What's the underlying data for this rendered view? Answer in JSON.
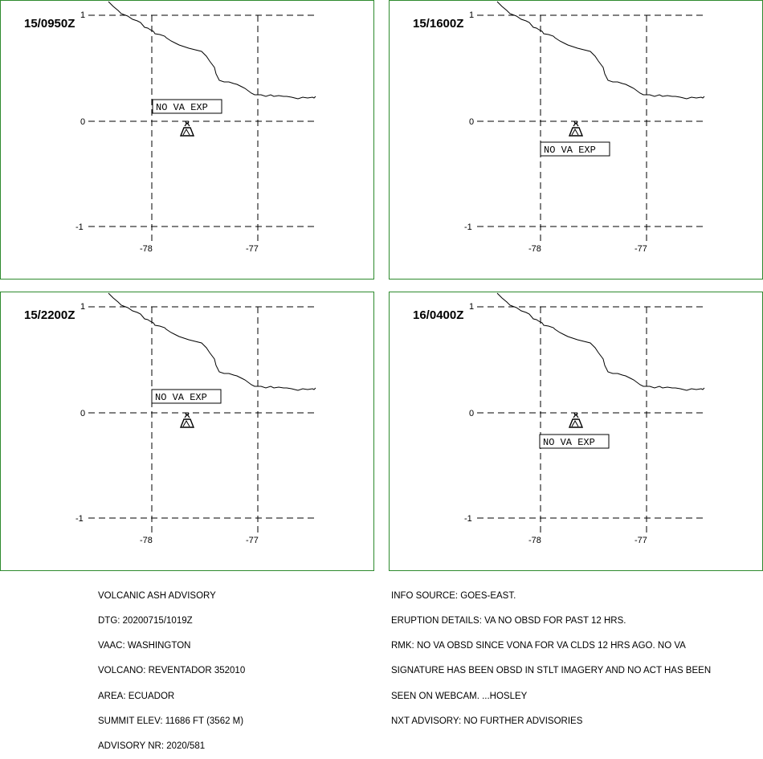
{
  "panels": [
    {
      "time": "15/0950Z",
      "status": "NO VA EXP"
    },
    {
      "time": "15/1600Z",
      "status": "NO VA EXP"
    },
    {
      "time": "15/2200Z",
      "status": "NO VA EXP"
    },
    {
      "time": "16/0400Z",
      "status": "NO VA EXP"
    }
  ],
  "axes": {
    "lat_labels": [
      "1",
      "0",
      "-1"
    ],
    "lon_labels": [
      "-78",
      "-77"
    ]
  },
  "volcano_icon": "volcano-icon",
  "colors": {
    "panel_border": "#2e8b2e",
    "lines": "#000000"
  },
  "advisory_left": [
    "VOLCANIC ASH ADVISORY",
    "DTG: 20200715/1019Z",
    "VAAC: WASHINGTON",
    "VOLCANO: REVENTADOR 352010",
    "AREA: ECUADOR",
    "SUMMIT ELEV: 11686 FT (3562 M)",
    "ADVISORY NR: 2020/581"
  ],
  "advisory_right": [
    "INFO SOURCE: GOES-EAST.",
    "ERUPTION DETAILS: VA NO OBSD FOR PAST 12 HRS.",
    "RMK: NO VA OBSD SINCE VONA FOR VA CLDS 12 HRS AGO. NO VA",
    "SIGNATURE HAS BEEN OBSD IN STLT IMAGERY AND NO ACT HAS BEEN",
    "SEEN ON WEBCAM. ...HOSLEY",
    "NXT ADVISORY: NO FURTHER ADVISORIES"
  ]
}
